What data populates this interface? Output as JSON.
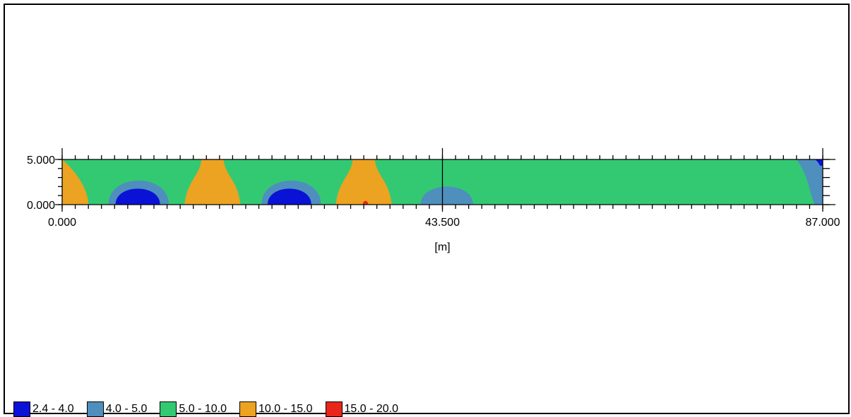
{
  "chart_data": {
    "type": "heatmap",
    "title": "",
    "xlabel": "[m]",
    "ylabel": "",
    "xlim": [
      0,
      87
    ],
    "ylim": [
      0,
      5
    ],
    "x_ticks": [
      "0.000",
      "43.500",
      "87.000"
    ],
    "y_ticks": [
      "0.000",
      "5.000"
    ],
    "background_class": "5.0 - 10.0",
    "classes": [
      {
        "label": "2.4 - 4.0",
        "color": "#0a12d6"
      },
      {
        "label": "4.0 - 5.0",
        "color": "#4e8fbd"
      },
      {
        "label": "5.0 - 10.0",
        "color": "#33c973"
      },
      {
        "label": "10.0 - 15.0",
        "color": "#eba321"
      },
      {
        "label": "15.0 - 20.0",
        "color": "#e8261c"
      }
    ],
    "zones": [
      {
        "class": "10.0 - 15.0",
        "x_range": [
          0,
          3.0
        ],
        "y_range": [
          0,
          5
        ]
      },
      {
        "class": "4.0 - 5.0",
        "x_range": [
          5.3,
          12.2
        ],
        "y_range": [
          0,
          3.4
        ]
      },
      {
        "class": "2.4 - 4.0",
        "x_range": [
          6.1,
          11.2
        ],
        "y_range": [
          0,
          2.2
        ]
      },
      {
        "class": "10.0 - 15.0",
        "x_range": [
          14.0,
          20.4
        ],
        "y_range": [
          0,
          5
        ]
      },
      {
        "class": "4.0 - 5.0",
        "x_range": [
          22.8,
          29.6
        ],
        "y_range": [
          0,
          3.4
        ]
      },
      {
        "class": "2.4 - 4.0",
        "x_range": [
          23.5,
          28.5
        ],
        "y_range": [
          0,
          2.2
        ]
      },
      {
        "class": "10.0 - 15.0",
        "x_range": [
          31.3,
          37.7
        ],
        "y_range": [
          0,
          5
        ]
      },
      {
        "class": "15.0 - 20.0",
        "x_range": [
          34.4,
          35.0
        ],
        "y_range": [
          0,
          0.4
        ]
      },
      {
        "class": "4.0 - 5.0",
        "x_range": [
          41.0,
          47.0
        ],
        "y_range": [
          0,
          2.5
        ]
      },
      {
        "class": "4.0 - 5.0",
        "x_range": [
          84.0,
          87
        ],
        "y_range": [
          0,
          5
        ]
      },
      {
        "class": "2.4 - 4.0",
        "x_range": [
          86.1,
          87
        ],
        "y_range": [
          4.3,
          5
        ]
      }
    ]
  }
}
